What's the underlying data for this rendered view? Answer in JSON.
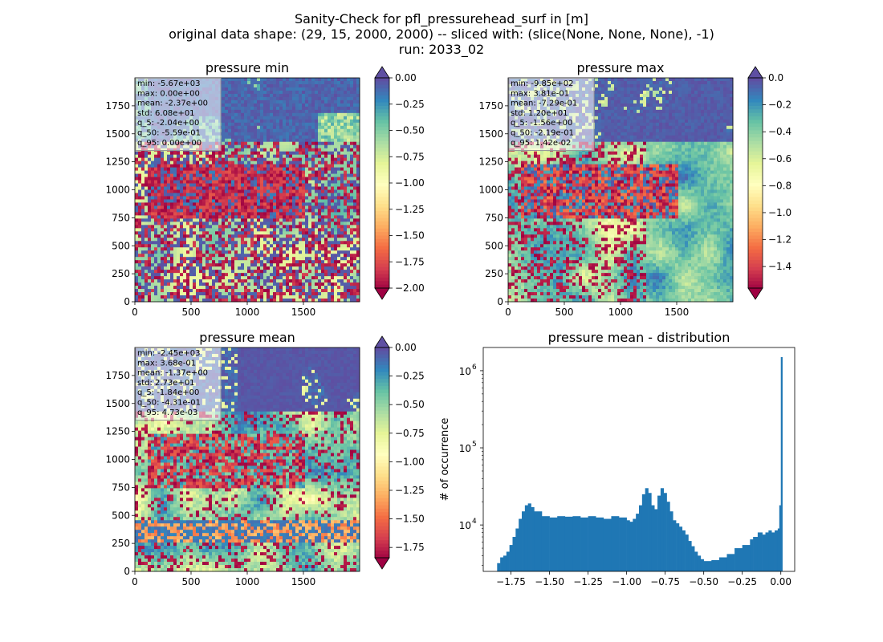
{
  "suptitle": {
    "line1": "Sanity-Check for pfl_pressurehead_surf in [m]",
    "line2": "original data shape: (29, 15, 2000, 2000) -- sliced with: (slice(None, None, None), -1)",
    "line3": "run: 2033_02"
  },
  "colormap": "Spectral",
  "colors": {
    "hist_bar": "#1f77b4",
    "over_color": "#5e4fa2",
    "under_color": "#9e0142"
  },
  "chart_data": [
    {
      "type": "heatmap",
      "title": "pressure min",
      "xticks": [
        "0",
        "500",
        "1000",
        "1500"
      ],
      "yticks": [
        "0",
        "250",
        "500",
        "750",
        "1000",
        "1250",
        "1500",
        "1750"
      ],
      "xlim": [
        0,
        2000
      ],
      "ylim": [
        0,
        2000
      ],
      "colorbar": {
        "range": [
          -2.0,
          0.0
        ],
        "ticks": [
          "0.00",
          "−0.25",
          "−0.50",
          "−0.75",
          "−1.00",
          "−1.25",
          "−1.50",
          "−1.75",
          "−2.00"
        ],
        "extend": "both"
      },
      "stats": [
        "min: -5.67e+03",
        "max: 0.00e+00",
        "mean: -2.37e+00",
        "std: 6.08e+01",
        "q_5: -2.04e+00",
        "q_50: -5.59e-01",
        "q_95: 0.00e+00"
      ]
    },
    {
      "type": "heatmap",
      "title": "pressure max",
      "xticks": [
        "0",
        "500",
        "1000",
        "1500"
      ],
      "yticks": [
        "0",
        "250",
        "500",
        "750",
        "1000",
        "1250",
        "1500",
        "1750"
      ],
      "xlim": [
        0,
        2000
      ],
      "ylim": [
        0,
        2000
      ],
      "colorbar": {
        "range": [
          -1.56,
          0.0
        ],
        "ticks": [
          "0.0",
          "−0.2",
          "−0.4",
          "−0.6",
          "−0.8",
          "−1.0",
          "−1.2",
          "−1.4"
        ],
        "extend": "both"
      },
      "stats": [
        "min: -9.85e+02",
        "max: 3.81e-01",
        "mean: -7.29e-01",
        "std: 1.20e+01",
        "q_5: -1.56e+00",
        "q_50: -2.19e-01",
        "q_95: 1.42e-02"
      ]
    },
    {
      "type": "heatmap",
      "title": "pressure mean",
      "xticks": [
        "0",
        "500",
        "1000",
        "1500"
      ],
      "yticks": [
        "0",
        "250",
        "500",
        "750",
        "1000",
        "1250",
        "1500",
        "1750"
      ],
      "xlim": [
        0,
        2000
      ],
      "ylim": [
        0,
        2000
      ],
      "colorbar": {
        "range": [
          -1.84,
          0.0
        ],
        "ticks": [
          "0.00",
          "−0.25",
          "−0.50",
          "−0.75",
          "−1.00",
          "−1.25",
          "−1.50",
          "−1.75"
        ],
        "extend": "both"
      },
      "stats": [
        "min: -2.45e+03",
        "max: 3.68e-01",
        "mean: -1.37e+00",
        "std: 2.73e+01",
        "q_5: -1.84e+00",
        "q_50: -4.31e-01",
        "q_95: 4.73e-03"
      ]
    },
    {
      "type": "bar",
      "title": "pressure mean - distribution",
      "ylabel": "# of occurrence",
      "xlabel": "",
      "yscale": "log",
      "xlim": [
        -1.93,
        0.09
      ],
      "ylim": [
        2500,
        2000000
      ],
      "xticks": [
        "−1.75",
        "−1.50",
        "−1.25",
        "−1.00",
        "−0.75",
        "−0.50",
        "−0.25",
        "0.00"
      ],
      "xtick_values": [
        -1.75,
        -1.5,
        -1.25,
        -1.0,
        -0.75,
        -0.5,
        -0.25,
        0.0
      ],
      "ytick_values": [
        10000,
        100000,
        1000000
      ],
      "yticks": [
        "10",
        "10",
        "10"
      ],
      "ytick_exponents": [
        "4",
        "5",
        "6"
      ],
      "histogram": {
        "x": [
          -1.84,
          -1.82,
          -1.8,
          -1.78,
          -1.76,
          -1.74,
          -1.72,
          -1.7,
          -1.68,
          -1.66,
          -1.64,
          -1.62,
          -1.6,
          -1.55,
          -1.5,
          -1.45,
          -1.4,
          -1.35,
          -1.3,
          -1.25,
          -1.2,
          -1.15,
          -1.1,
          -1.05,
          -1.0,
          -0.98,
          -0.96,
          -0.94,
          -0.92,
          -0.9,
          -0.88,
          -0.86,
          -0.84,
          -0.82,
          -0.8,
          -0.78,
          -0.76,
          -0.74,
          -0.72,
          -0.7,
          -0.68,
          -0.66,
          -0.64,
          -0.62,
          -0.6,
          -0.58,
          -0.56,
          -0.54,
          -0.52,
          -0.5,
          -0.45,
          -0.4,
          -0.35,
          -0.3,
          -0.25,
          -0.2,
          -0.18,
          -0.15,
          -0.12,
          -0.1,
          -0.08,
          -0.06,
          -0.04,
          -0.02,
          -0.01,
          0.0
        ],
        "y": [
          3200,
          3800,
          4000,
          4500,
          5500,
          7000,
          9000,
          12000,
          15000,
          18000,
          19000,
          17000,
          15000,
          13000,
          12500,
          13000,
          12800,
          13000,
          12500,
          13000,
          12500,
          12000,
          13000,
          12500,
          11500,
          11000,
          12000,
          14000,
          18000,
          25000,
          30000,
          26000,
          18000,
          16000,
          24000,
          30000,
          26000,
          20000,
          15000,
          11500,
          10500,
          9500,
          8500,
          7500,
          6200,
          5300,
          4500,
          4000,
          3600,
          3400,
          3500,
          3800,
          4200,
          5000,
          5500,
          6500,
          7000,
          8000,
          7500,
          8000,
          8500,
          8000,
          8500,
          9000,
          18000,
          1500000
        ]
      }
    }
  ]
}
